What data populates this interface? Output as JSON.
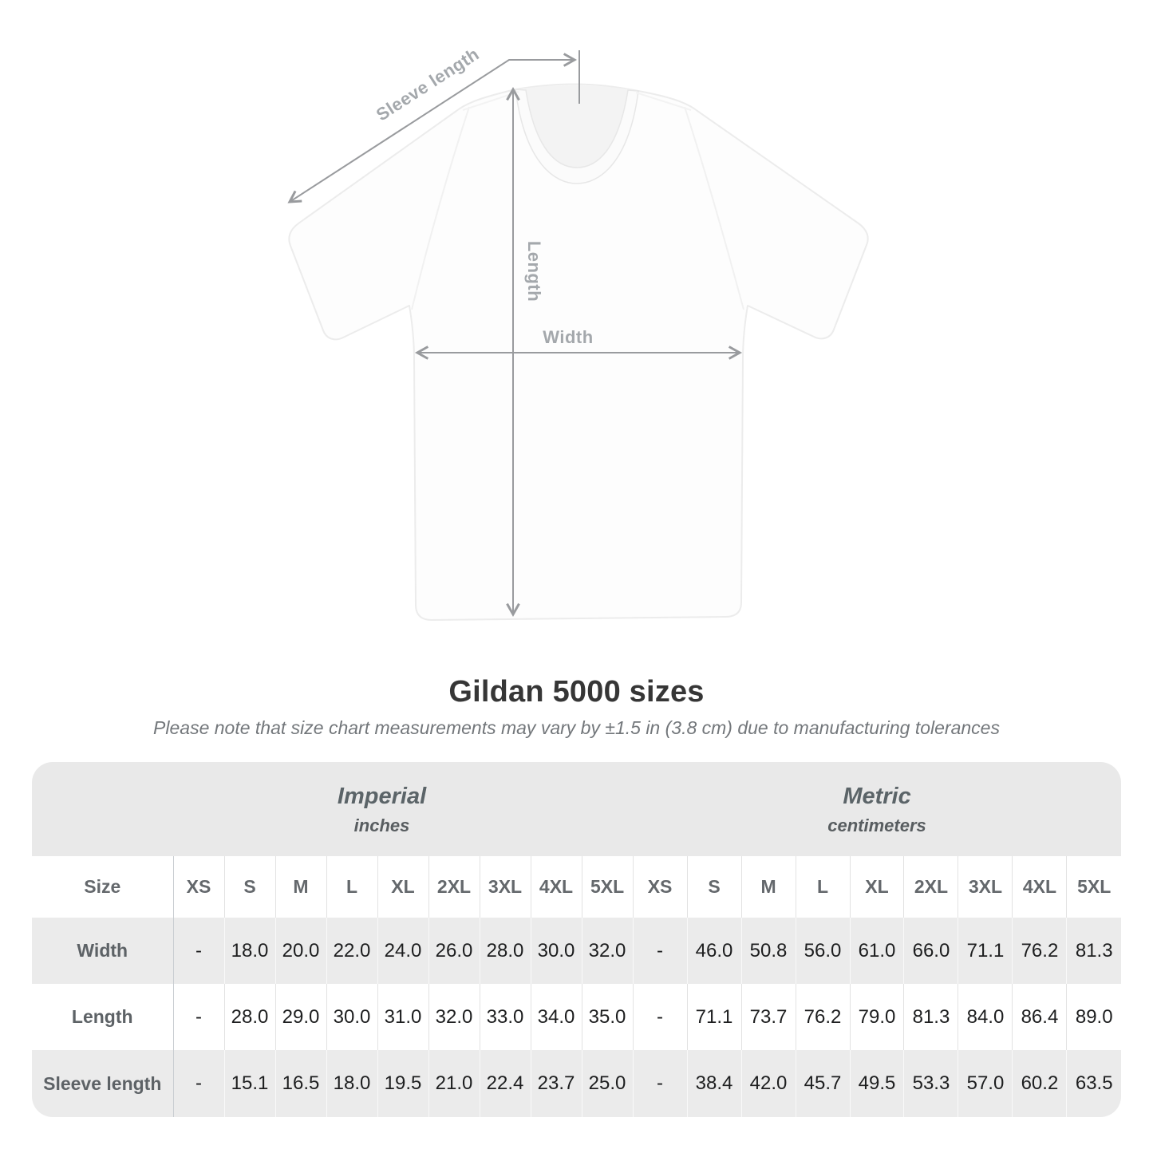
{
  "title": "Gildan 5000 sizes",
  "subtitle": "Please note that size chart measurements may vary by ±1.5 in (3.8 cm) due to manufacturing tolerances",
  "diagram": {
    "labels": {
      "sleeve_length": "Sleeve length",
      "length": "Length",
      "width": "Width"
    }
  },
  "chart_data": {
    "type": "table",
    "title": "Gildan 5000 sizes",
    "note": "Please note that size chart measurements may vary by ±1.5 in (3.8 cm) due to manufacturing tolerances",
    "unit_groups": [
      {
        "name": "Imperial",
        "unit": "inches"
      },
      {
        "name": "Metric",
        "unit": "centimeters"
      }
    ],
    "size_header_label": "Size",
    "sizes": [
      "XS",
      "S",
      "M",
      "L",
      "XL",
      "2XL",
      "3XL",
      "4XL",
      "5XL"
    ],
    "rows": [
      {
        "label": "Width",
        "imperial": [
          "-",
          "18.0",
          "20.0",
          "22.0",
          "24.0",
          "26.0",
          "28.0",
          "30.0",
          "32.0"
        ],
        "metric": [
          "-",
          "46.0",
          "50.8",
          "56.0",
          "61.0",
          "66.0",
          "71.1",
          "76.2",
          "81.3"
        ]
      },
      {
        "label": "Length",
        "imperial": [
          "-",
          "28.0",
          "29.0",
          "30.0",
          "31.0",
          "32.0",
          "33.0",
          "34.0",
          "35.0"
        ],
        "metric": [
          "-",
          "71.1",
          "73.7",
          "76.2",
          "79.0",
          "81.3",
          "84.0",
          "86.4",
          "89.0"
        ]
      },
      {
        "label": "Sleeve length",
        "imperial": [
          "-",
          "15.1",
          "16.5",
          "18.0",
          "19.5",
          "21.0",
          "22.4",
          "23.7",
          "25.0"
        ],
        "metric": [
          "-",
          "38.4",
          "42.0",
          "45.7",
          "49.5",
          "53.3",
          "57.0",
          "60.2",
          "63.5"
        ]
      }
    ]
  }
}
